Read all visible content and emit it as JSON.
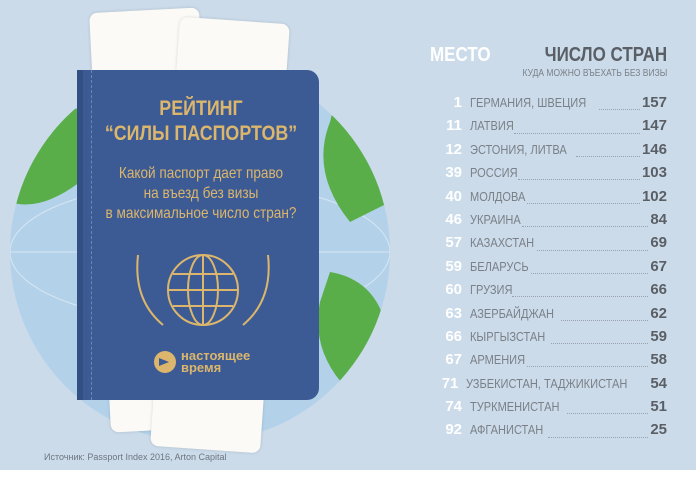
{
  "cover": {
    "title_line1": "РЕЙТИНГ",
    "title_line2": "“СИЛЫ ПАСПОРТОВ”",
    "question_line1": "Какой паспорт дает право",
    "question_line2": "на въезд без визы",
    "question_line3": "в максимальное число стран?",
    "logo_line1": "настоящее",
    "logo_line2": "время"
  },
  "colors": {
    "background": "#cbdbea",
    "passport": "#3c5b94",
    "gold": "#dbb66c",
    "land": "#5aae4a",
    "ocean": "#b3d2ea"
  },
  "table": {
    "rank_header": "МЕСТО",
    "count_header": "ЧИСЛО СТРАН",
    "count_subheader": "КУДА МОЖНО ВЪЕХАТЬ БЕЗ ВИЗЫ",
    "rows": [
      {
        "rank": "1",
        "country": "ГЕРМАНИЯ, ШВЕЦИЯ",
        "count": "157"
      },
      {
        "rank": "11",
        "country": "ЛАТВИЯ",
        "count": "147"
      },
      {
        "rank": "12",
        "country": "ЭСТОНИЯ, ЛИТВА",
        "count": "146"
      },
      {
        "rank": "39",
        "country": "РОССИЯ",
        "count": "103"
      },
      {
        "rank": "40",
        "country": "МОЛДОВА",
        "count": "102"
      },
      {
        "rank": "46",
        "country": "УКРАИНА",
        "count": "84"
      },
      {
        "rank": "57",
        "country": "КАЗАХСТАН",
        "count": "69"
      },
      {
        "rank": "59",
        "country": "БЕЛАРУСЬ",
        "count": "67"
      },
      {
        "rank": "60",
        "country": "ГРУЗИЯ",
        "count": "66"
      },
      {
        "rank": "63",
        "country": "АЗЕРБАЙДЖАН",
        "count": "62"
      },
      {
        "rank": "66",
        "country": "КЫРГЫЗСТАН",
        "count": "59"
      },
      {
        "rank": "67",
        "country": "АРМЕНИЯ",
        "count": "58"
      },
      {
        "rank": "71",
        "country": "УЗБЕКИСТАН, ТАДЖИКИСТАН",
        "count": "54"
      },
      {
        "rank": "74",
        "country": "ТУРКМЕНИСТАН",
        "count": "51"
      },
      {
        "rank": "92",
        "country": "АФГАНИСТАН",
        "count": "25"
      }
    ]
  },
  "source": "Источник: Passport Index 2016, Arton Capital"
}
